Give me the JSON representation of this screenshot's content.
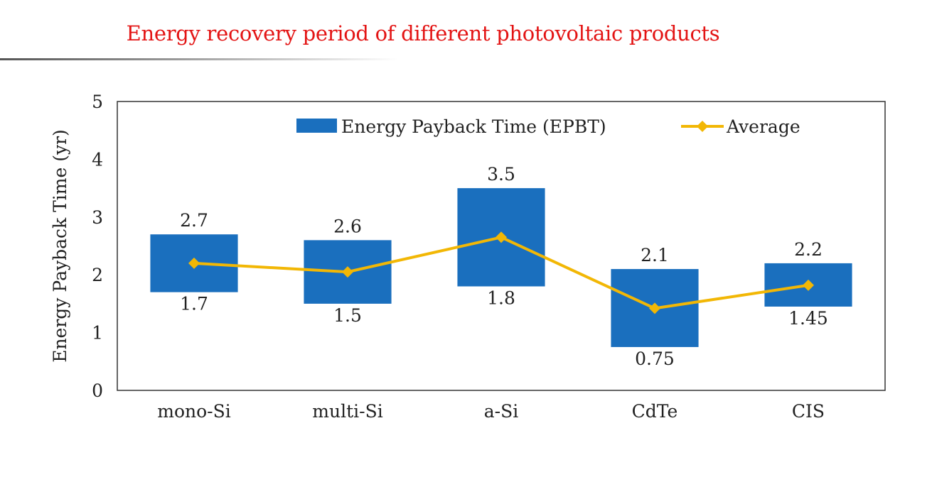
{
  "slide": {
    "title": "Energy recovery period of different photovoltaic products"
  },
  "chart_data": {
    "type": "bar",
    "subtype": "floating-range with average line",
    "categories": [
      "mono-Si",
      "multi-Si",
      "a-Si",
      "CdTe",
      "CIS"
    ],
    "series": [
      {
        "name": "Energy Payback Time (EPBT)",
        "kind": "range-bar",
        "low": [
          1.7,
          1.5,
          1.8,
          0.75,
          1.45
        ],
        "high": [
          2.7,
          2.6,
          3.5,
          2.1,
          2.2
        ],
        "low_labels": [
          "1.7",
          "1.5",
          "1.8",
          "0.75",
          "1.45"
        ],
        "high_labels": [
          "2.7",
          "2.6",
          "3.5",
          "2.1",
          "2.2"
        ],
        "color": "#1a6fbe"
      },
      {
        "name": "Average",
        "kind": "line",
        "values": [
          2.2,
          2.05,
          2.65,
          1.42,
          1.82
        ],
        "color": "#f2b705"
      }
    ],
    "ylabel": "Energy Payback Time (yr)",
    "xlabel": "",
    "ylim": [
      0,
      5
    ],
    "yticks": [
      "0",
      "1",
      "2",
      "3",
      "4",
      "5"
    ],
    "grid": false,
    "legend_position": "top-right"
  }
}
